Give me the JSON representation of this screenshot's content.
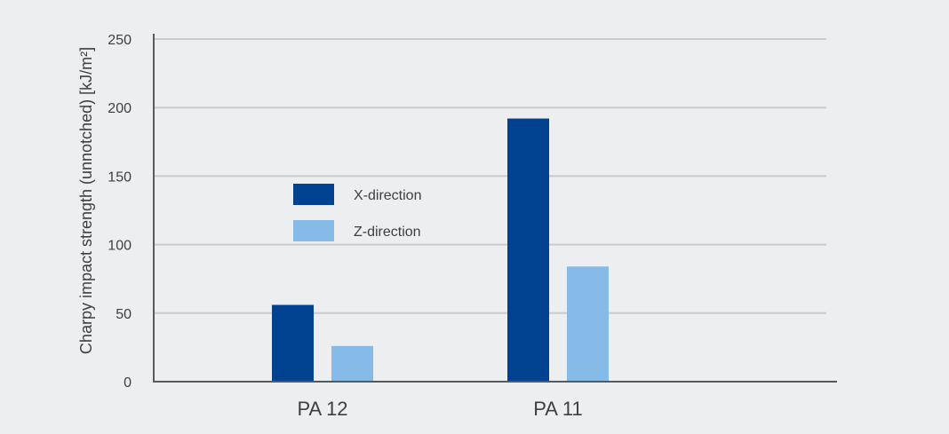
{
  "chart_data": {
    "type": "bar",
    "categories": [
      "PA 12",
      "PA 11"
    ],
    "series": [
      {
        "name": "X-direction",
        "values": [
          56,
          192
        ],
        "color": "#00428f"
      },
      {
        "name": "Z-direction",
        "values": [
          26,
          84
        ],
        "color": "#86bbe8"
      }
    ],
    "ylabel": "Charpy impact strength (unnotched) [kJ/m²]",
    "xlabel": "",
    "ylim": [
      0,
      250
    ],
    "yticks": [
      0,
      50,
      100,
      150,
      200,
      250
    ],
    "ytick_labels": [
      "0",
      "50",
      "100",
      "150",
      "200",
      "250"
    ],
    "grid": true,
    "legend_position": "inside-left",
    "colors": {
      "background": "#eceef0",
      "grid": "#c8cccf",
      "axis": "#555a5e"
    }
  }
}
